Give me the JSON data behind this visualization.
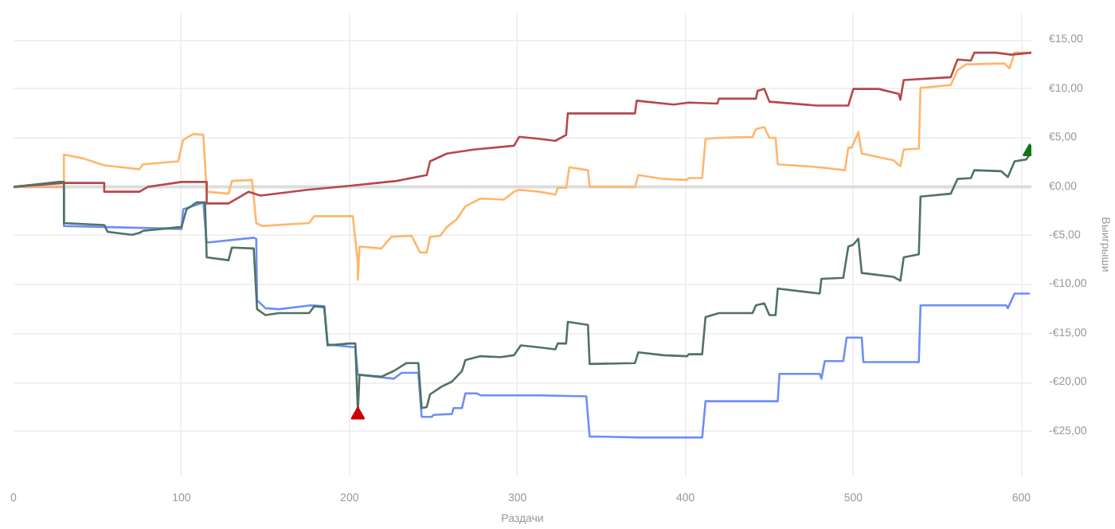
{
  "chart_data": {
    "type": "line",
    "xlabel": "Раздачи",
    "ylabel": "Выигрыши",
    "xlim": [
      0,
      606
    ],
    "ylim": [
      -29.5,
      17.7
    ],
    "xticks": [
      0,
      100,
      200,
      300,
      400,
      500,
      600
    ],
    "yticks": [
      {
        "value": -25,
        "label": "-€25,00"
      },
      {
        "value": -20,
        "label": "-€20,00"
      },
      {
        "value": -15,
        "label": "-€15,00"
      },
      {
        "value": -10,
        "label": "-€10,00"
      },
      {
        "value": -5,
        "label": "-€5,00"
      },
      {
        "value": 0,
        "label": "€0,00"
      },
      {
        "value": 5,
        "label": "€5,00"
      },
      {
        "value": 10,
        "label": "€10,00"
      },
      {
        "value": 15,
        "label": "€15,00"
      }
    ],
    "grid": true,
    "line_style": "solid",
    "marker": "none",
    "ref_lines": [
      {
        "axis": "y",
        "value": 0,
        "color": "#dddddd"
      }
    ],
    "series": [
      {
        "color": "#6d8ef7",
        "x": [
          0,
          30,
          30,
          100,
          101,
          113,
          115,
          143,
          144.5,
          145,
          150,
          158,
          177,
          185,
          187,
          203.5,
          205,
          206,
          226.5,
          231,
          241,
          243,
          249,
          250,
          261,
          262,
          267,
          269,
          276,
          278,
          313,
          341,
          343,
          372,
          410,
          412,
          455,
          456,
          480,
          481,
          483,
          494,
          496,
          505,
          506,
          539,
          540,
          591,
          592,
          596,
          605
        ],
        "values": [
          0,
          0,
          -4.0,
          -4.3,
          -2.3,
          -1.6,
          -5.7,
          -5.2,
          -5.3,
          -11.6,
          -12.4,
          -12.5,
          -12.1,
          -12.2,
          -16.1,
          -16.4,
          -19.2,
          -19.2,
          -19.6,
          -19.0,
          -19.0,
          -23.5,
          -23.5,
          -23.3,
          -23.2,
          -22.6,
          -22.6,
          -21.1,
          -21.1,
          -21.3,
          -21.3,
          -21.4,
          -25.5,
          -25.6,
          -25.6,
          -21.9,
          -21.9,
          -19.1,
          -19.1,
          -19.6,
          -17.8,
          -17.8,
          -15.4,
          -15.4,
          -17.9,
          -17.9,
          -12.1,
          -12.1,
          -12.4,
          -10.9,
          -10.9
        ]
      },
      {
        "color": "#ffb66c",
        "x": [
          0,
          30,
          30,
          41.5,
          54,
          75,
          77,
          98,
          101,
          107,
          113,
          115,
          128,
          130,
          142,
          144.5,
          148,
          176,
          179,
          202,
          205,
          205,
          206,
          219,
          225,
          237,
          242,
          246,
          248,
          254,
          258,
          264,
          269,
          278,
          292,
          298,
          301,
          313,
          322.6,
          324,
          329,
          331,
          342,
          343,
          370,
          372,
          387,
          401,
          402,
          410,
          412,
          420,
          440,
          442,
          447,
          450,
          453.7,
          455,
          480,
          495,
          497,
          499,
          503,
          505,
          524,
          528,
          530,
          539,
          540,
          558,
          562,
          567,
          590,
          593,
          596,
          606
        ],
        "values": [
          0,
          0,
          3.3,
          2.9,
          2.2,
          1.8,
          2.3,
          2.6,
          4.8,
          5.4,
          5.3,
          -0.5,
          -0.7,
          0.6,
          0.7,
          -3.7,
          -4.0,
          -3.7,
          -3.0,
          -3.0,
          -7.8,
          -9.5,
          -6.1,
          -6.3,
          -5.1,
          -5.0,
          -6.7,
          -6.7,
          -5.1,
          -5.0,
          -4.1,
          -3.3,
          -2.0,
          -1.2,
          -1.3,
          -0.5,
          -0.3,
          -0.5,
          -0.8,
          -0.1,
          -0.1,
          2.0,
          1.7,
          0,
          0,
          1.2,
          0.8,
          0.7,
          0.9,
          0.9,
          4.9,
          5.0,
          5.1,
          5.9,
          6.1,
          5.0,
          5.0,
          2.3,
          2.0,
          1.7,
          4.0,
          4.0,
          5.6,
          3.4,
          2.7,
          2.1,
          3.8,
          3.9,
          10.1,
          10.4,
          11.9,
          12.5,
          12.6,
          12.1,
          13.7,
          13.7
        ]
      },
      {
        "color": "#b5484b",
        "x": [
          0,
          30,
          54,
          54,
          75,
          80,
          100,
          115,
          115,
          128,
          140,
          147,
          175,
          200,
          228,
          246,
          248,
          258,
          274,
          298,
          301,
          313,
          322.6,
          329,
          330,
          370,
          371,
          393,
          402,
          419,
          420,
          442,
          443,
          447,
          450,
          478,
          497,
          500,
          515,
          527,
          528,
          530,
          558,
          562,
          570,
          572,
          585,
          594,
          606
        ],
        "values": [
          0,
          0.4,
          0.4,
          -0.5,
          -0.5,
          0,
          0.5,
          0.5,
          -1.7,
          -1.7,
          -0.5,
          -0.9,
          -0.3,
          0.1,
          0.6,
          1.2,
          2.6,
          3.4,
          3.8,
          4.2,
          5.1,
          4.9,
          4.7,
          5.3,
          7.5,
          7.5,
          8.8,
          8.4,
          8.6,
          8.5,
          9.0,
          9.0,
          9.8,
          10.0,
          8.7,
          8.3,
          8.3,
          10.0,
          10.0,
          9.5,
          8.9,
          10.9,
          11.2,
          13.0,
          12.9,
          13.7,
          13.7,
          13.5,
          13.7
        ]
      },
      {
        "color": "#4f7363",
        "x": [
          0,
          27,
          30,
          30,
          54,
          56,
          70.5,
          75,
          77,
          100,
          103,
          109,
          114,
          115,
          128,
          130,
          143,
          145,
          150,
          158,
          176,
          179,
          185,
          187,
          200,
          203.5,
          205,
          206,
          219,
          226.5,
          234,
          241,
          243,
          246,
          248,
          255,
          261,
          267,
          269,
          278,
          290,
          298,
          302,
          313,
          322.6,
          324,
          329,
          330,
          342,
          343,
          370,
          372,
          387,
          401,
          402,
          410,
          412,
          420,
          440,
          442,
          447,
          450,
          453.7,
          455,
          480,
          481,
          494,
          497,
          500,
          503,
          505,
          524,
          528,
          530,
          539,
          540,
          558,
          562,
          570,
          572,
          588,
          592,
          596,
          603,
          605
        ],
        "values": [
          0,
          0.5,
          0.5,
          -3.7,
          -3.9,
          -4.6,
          -4.9,
          -4.7,
          -4.5,
          -4.1,
          -2.3,
          -1.6,
          -1.6,
          -7.2,
          -7.5,
          -6.2,
          -6.3,
          -12.5,
          -13.1,
          -12.9,
          -12.9,
          -12.2,
          -12.3,
          -16.2,
          -16.0,
          -16.0,
          -23.0,
          -19.2,
          -19.4,
          -18.8,
          -18.0,
          -18.0,
          -22.6,
          -22.5,
          -21.2,
          -20.4,
          -19.9,
          -18.8,
          -17.7,
          -17.3,
          -17.4,
          -17.2,
          -16.2,
          -16.4,
          -16.6,
          -16.0,
          -16.0,
          -13.8,
          -14.1,
          -18.1,
          -18.0,
          -16.9,
          -17.2,
          -17.3,
          -17.1,
          -17.1,
          -13.3,
          -12.9,
          -12.9,
          -12.1,
          -11.9,
          -13.1,
          -13.1,
          -10.4,
          -10.9,
          -9.4,
          -9.3,
          -6.1,
          -5.9,
          -5.3,
          -8.8,
          -9.2,
          -9.6,
          -7.2,
          -6.9,
          -1.0,
          -0.7,
          0.8,
          0.9,
          1.7,
          1.6,
          1.0,
          2.6,
          2.8,
          3.3
        ]
      },
      {
        "type": "scatter",
        "marker": "triangle",
        "color": "#cc0000",
        "x": [
          205
        ],
        "values": [
          -23.3
        ]
      },
      {
        "type": "scatter",
        "marker": "triangle",
        "color": "#117711",
        "x": [
          605
        ],
        "values": [
          3.6
        ]
      }
    ]
  }
}
